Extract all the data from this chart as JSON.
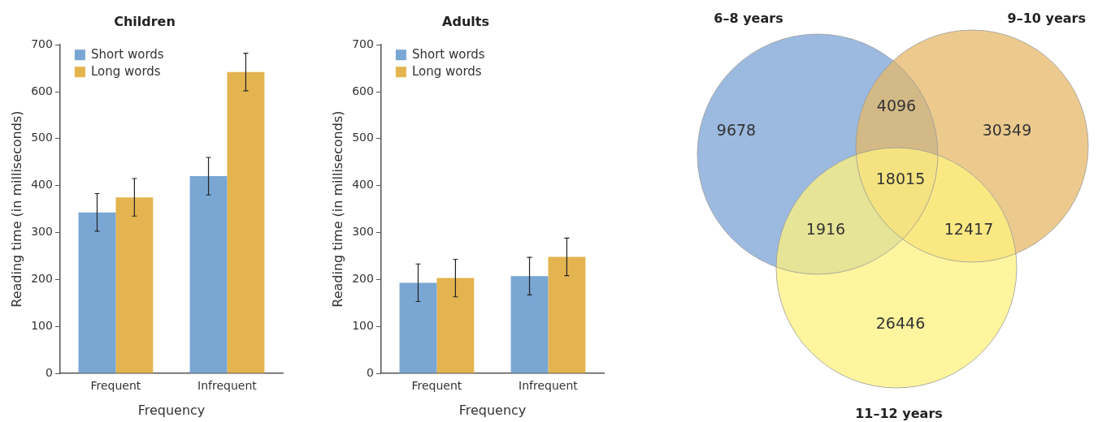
{
  "chart_data": [
    {
      "type": "bar",
      "title": "Children",
      "xlabel": "Frequency",
      "ylabel": "Reading time (in milliseconds)",
      "categories": [
        "Frequent",
        "Infrequent"
      ],
      "ylim": [
        0,
        700
      ],
      "yticks": [
        0,
        100,
        200,
        300,
        400,
        500,
        600,
        700
      ],
      "grid": false,
      "legend": "top left",
      "series": [
        {
          "name": "Short words",
          "color": "#7aa6d3",
          "values": [
            343,
            420
          ],
          "errors": [
            40,
            40
          ]
        },
        {
          "name": "Long words",
          "color": "#e3b44f",
          "values": [
            375,
            642
          ],
          "errors": [
            40,
            40
          ]
        }
      ]
    },
    {
      "type": "bar",
      "title": "Adults",
      "xlabel": "Frequency",
      "ylabel": "Reading time (in milliseconds)",
      "categories": [
        "Frequent",
        "Infrequent"
      ],
      "ylim": [
        0,
        700
      ],
      "yticks": [
        0,
        100,
        200,
        300,
        400,
        500,
        600,
        700
      ],
      "grid": false,
      "legend": "top left",
      "series": [
        {
          "name": "Short words",
          "color": "#7aa6d3",
          "values": [
            193,
            207
          ],
          "errors": [
            40,
            40
          ]
        },
        {
          "name": "Long words",
          "color": "#e3b44f",
          "values": [
            203,
            248
          ],
          "errors": [
            40,
            40
          ]
        }
      ]
    },
    {
      "type": "other",
      "categories": [
        "6–8 years",
        "9–10 years",
        "11–12 years"
      ],
      "values": [
        9678,
        30349,
        26446
      ],
      "colors": [
        "#7ba3d6",
        "#e6b868",
        "#fff27e"
      ],
      "data_labels": true,
      "annotations": [
        "4096",
        "1916",
        "12417",
        "18015"
      ]
    }
  ]
}
